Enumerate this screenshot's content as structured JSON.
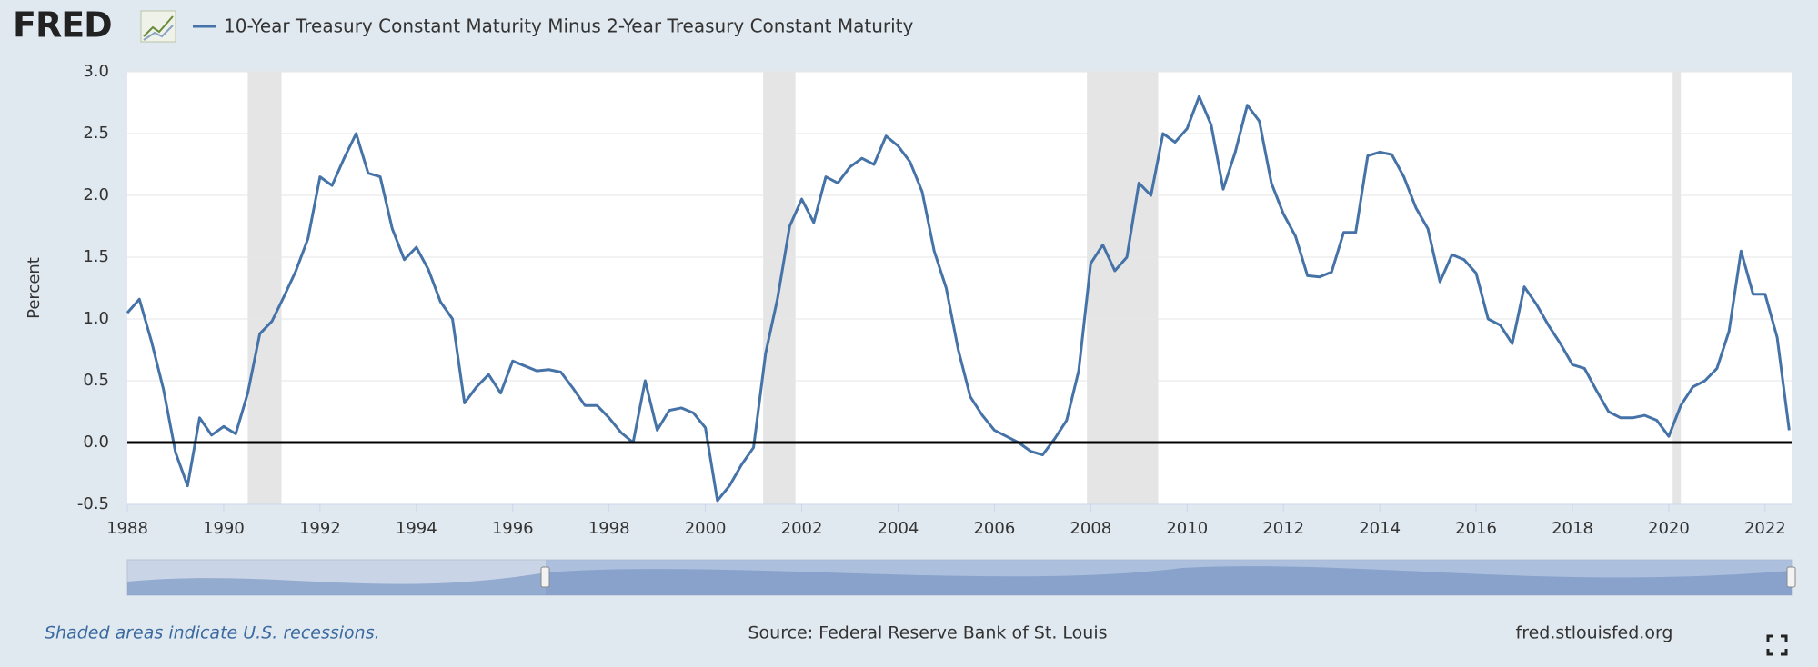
{
  "chart_data": {
    "type": "line",
    "logo": "FRED",
    "title": "10-Year Treasury Constant Maturity Minus 2-Year Treasury Constant Maturity",
    "y_label": "Percent",
    "note": "Shaded areas indicate U.S. recessions.",
    "source": "Source: Federal Reserve Bank of St. Louis",
    "url": "fred.stlouisfed.org",
    "x": [
      1988,
      1988.25,
      1988.5,
      1988.75,
      1989,
      1989.25,
      1989.5,
      1989.75,
      1990,
      1990.25,
      1990.5,
      1990.75,
      1991,
      1991.25,
      1991.5,
      1991.75,
      1992,
      1992.25,
      1992.5,
      1992.75,
      1993,
      1993.25,
      1993.5,
      1993.75,
      1994,
      1994.25,
      1994.5,
      1994.75,
      1995,
      1995.25,
      1995.5,
      1995.75,
      1996,
      1996.25,
      1996.5,
      1996.75,
      1997,
      1997.25,
      1997.5,
      1997.75,
      1998,
      1998.25,
      1998.5,
      1998.75,
      1999,
      1999.25,
      1999.5,
      1999.75,
      2000,
      2000.25,
      2000.5,
      2000.75,
      2001,
      2001.25,
      2001.5,
      2001.75,
      2002,
      2002.25,
      2002.5,
      2002.75,
      2003,
      2003.25,
      2003.5,
      2003.75,
      2004,
      2004.25,
      2004.5,
      2004.75,
      2005,
      2005.25,
      2005.5,
      2005.75,
      2006,
      2006.25,
      2006.5,
      2006.75,
      2007,
      2007.25,
      2007.5,
      2007.75,
      2008,
      2008.25,
      2008.5,
      2008.75,
      2009,
      2009.25,
      2009.5,
      2009.75,
      2010,
      2010.25,
      2010.5,
      2010.75,
      2011,
      2011.25,
      2011.5,
      2011.75,
      2012,
      2012.25,
      2012.5,
      2012.75,
      2013,
      2013.25,
      2013.5,
      2013.75,
      2014,
      2014.25,
      2014.5,
      2014.75,
      2015,
      2015.25,
      2015.5,
      2015.75,
      2016,
      2016.25,
      2016.5,
      2016.75,
      2017,
      2017.25,
      2017.5,
      2017.75,
      2018,
      2018.25,
      2018.5,
      2018.75,
      2019,
      2019.25,
      2019.5,
      2019.75,
      2020,
      2020.25,
      2020.5,
      2020.75,
      2021,
      2021.25,
      2021.5,
      2021.75,
      2022,
      2022.25,
      2022.5
    ],
    "series": [
      {
        "name": "10-Year Treasury Constant Maturity Minus 2-Year Treasury Constant Maturity",
        "color": "#4572a7",
        "values": [
          1.05,
          1.16,
          0.82,
          0.43,
          -0.08,
          -0.35,
          0.2,
          0.06,
          0.13,
          0.07,
          0.4,
          0.88,
          0.98,
          1.18,
          1.39,
          1.65,
          2.15,
          2.08,
          2.3,
          2.5,
          2.18,
          2.15,
          1.73,
          1.48,
          1.58,
          1.4,
          1.14,
          1.0,
          0.32,
          0.45,
          0.55,
          0.4,
          0.66,
          0.62,
          0.58,
          0.59,
          0.57,
          0.44,
          0.3,
          0.3,
          0.2,
          0.08,
          0.0,
          0.5,
          0.1,
          0.26,
          0.28,
          0.24,
          0.12,
          -0.47,
          -0.35,
          -0.18,
          -0.04,
          0.72,
          1.17,
          1.75,
          1.97,
          1.78,
          2.15,
          2.1,
          2.23,
          2.3,
          2.25,
          2.48,
          2.4,
          2.27,
          2.03,
          1.55,
          1.25,
          0.75,
          0.37,
          0.22,
          0.1,
          0.05,
          0.0,
          -0.07,
          -0.1,
          0.03,
          0.18,
          0.58,
          1.45,
          1.6,
          1.39,
          1.5,
          2.1,
          2.0,
          2.5,
          2.43,
          2.54,
          2.8,
          2.57,
          2.05,
          2.35,
          2.73,
          2.6,
          2.1,
          1.85,
          1.67,
          1.35,
          1.34,
          1.38,
          1.7,
          1.7,
          2.32,
          2.35,
          2.33,
          2.15,
          1.9,
          1.73,
          1.3,
          1.52,
          1.48,
          1.37,
          1.0,
          0.95,
          0.8,
          1.26,
          1.12,
          0.95,
          0.8,
          0.63,
          0.6,
          0.42,
          0.25,
          0.2,
          0.2,
          0.22,
          0.18,
          0.05,
          0.3,
          0.45,
          0.5,
          0.6,
          0.9,
          1.55,
          1.2,
          1.2,
          0.85,
          0.1
        ]
      }
    ],
    "recessions": [
      {
        "start": 1990.5,
        "end": 1991.2
      },
      {
        "start": 2001.2,
        "end": 2001.87
      },
      {
        "start": 2007.92,
        "end": 2009.4
      },
      {
        "start": 2020.08,
        "end": 2020.25
      }
    ],
    "xlim": [
      1988,
      2022.55
    ],
    "xticks": [
      1988,
      1990,
      1992,
      1994,
      1996,
      1998,
      2000,
      2002,
      2004,
      2006,
      2008,
      2010,
      2012,
      2014,
      2016,
      2018,
      2020,
      2022
    ],
    "ylim": [
      -0.5,
      3.0
    ],
    "yticks": [
      -0.5,
      {
        "value": 0,
        "label": "0.0"
      },
      0.5,
      {
        "value": 1,
        "label": "1.0"
      },
      1.5,
      {
        "value": 2,
        "label": "2.0"
      },
      2.5,
      {
        "value": 3,
        "label": "3.0"
      }
    ],
    "grid": true,
    "zero_line": true
  }
}
